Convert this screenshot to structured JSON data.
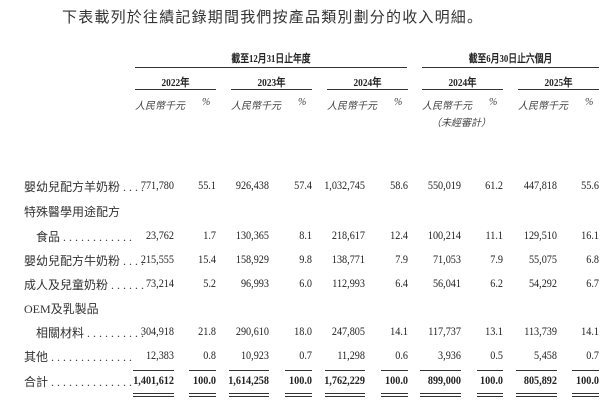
{
  "intro": "下表載列於往績記錄期間我們按產品類別劃分的收入明細。",
  "groups": [
    "截至12月31日止年度",
    "截至6月30日止六個月"
  ],
  "years": [
    "2022年",
    "2023年",
    "2024年",
    "2024年",
    "2025年"
  ],
  "unit_value": "人民幣千元",
  "unit_pct": "%",
  "unaudited": "（未經審計）",
  "rows": [
    {
      "label": "嬰幼兒配方羊奶粉 . . . .",
      "cells": [
        "771,780",
        "55.1",
        "926,438",
        "57.4",
        "1,032,745",
        "58.6",
        "550,019",
        "61.2",
        "447,818",
        "55.6"
      ]
    },
    {
      "label": "特殊醫學用途配方",
      "cells": []
    },
    {
      "label": "　食品 . . . . . . . . . . . .",
      "cells": [
        "23,762",
        "1.7",
        "130,365",
        "8.1",
        "218,617",
        "12.4",
        "100,214",
        "11.1",
        "129,510",
        "16.1"
      ]
    },
    {
      "label": "嬰幼兒配方牛奶粉 . . . .",
      "cells": [
        "215,555",
        "15.4",
        "158,929",
        "9.8",
        "138,771",
        "7.9",
        "71,053",
        "7.9",
        "55,075",
        "6.8"
      ]
    },
    {
      "label": "成人及兒童奶粉 . . . . . .",
      "cells": [
        "73,214",
        "5.2",
        "96,993",
        "6.0",
        "112,993",
        "6.4",
        "56,041",
        "6.2",
        "54,292",
        "6.7"
      ]
    },
    {
      "label": "OEM及乳製品",
      "cells": []
    },
    {
      "label": "　相關材料 . . . . . . . . . .",
      "cells": [
        "304,918",
        "21.8",
        "290,610",
        "18.0",
        "247,805",
        "14.1",
        "117,737",
        "13.1",
        "113,739",
        "14.1"
      ]
    },
    {
      "label": "其他 . . . . . . . . . . . . . .",
      "cells": [
        "12,383",
        "0.8",
        "10,923",
        "0.7",
        "11,298",
        "0.6",
        "3,936",
        "0.5",
        "5,458",
        "0.7"
      ]
    },
    {
      "label": "合計 . . . . . . . . . . . . . .",
      "cells": [
        "1,401,612",
        "100.0",
        "1,614,258",
        "100.0",
        "1,762,229",
        "100.0",
        "899,000",
        "100.0",
        "805,892",
        "100.0"
      ]
    }
  ]
}
